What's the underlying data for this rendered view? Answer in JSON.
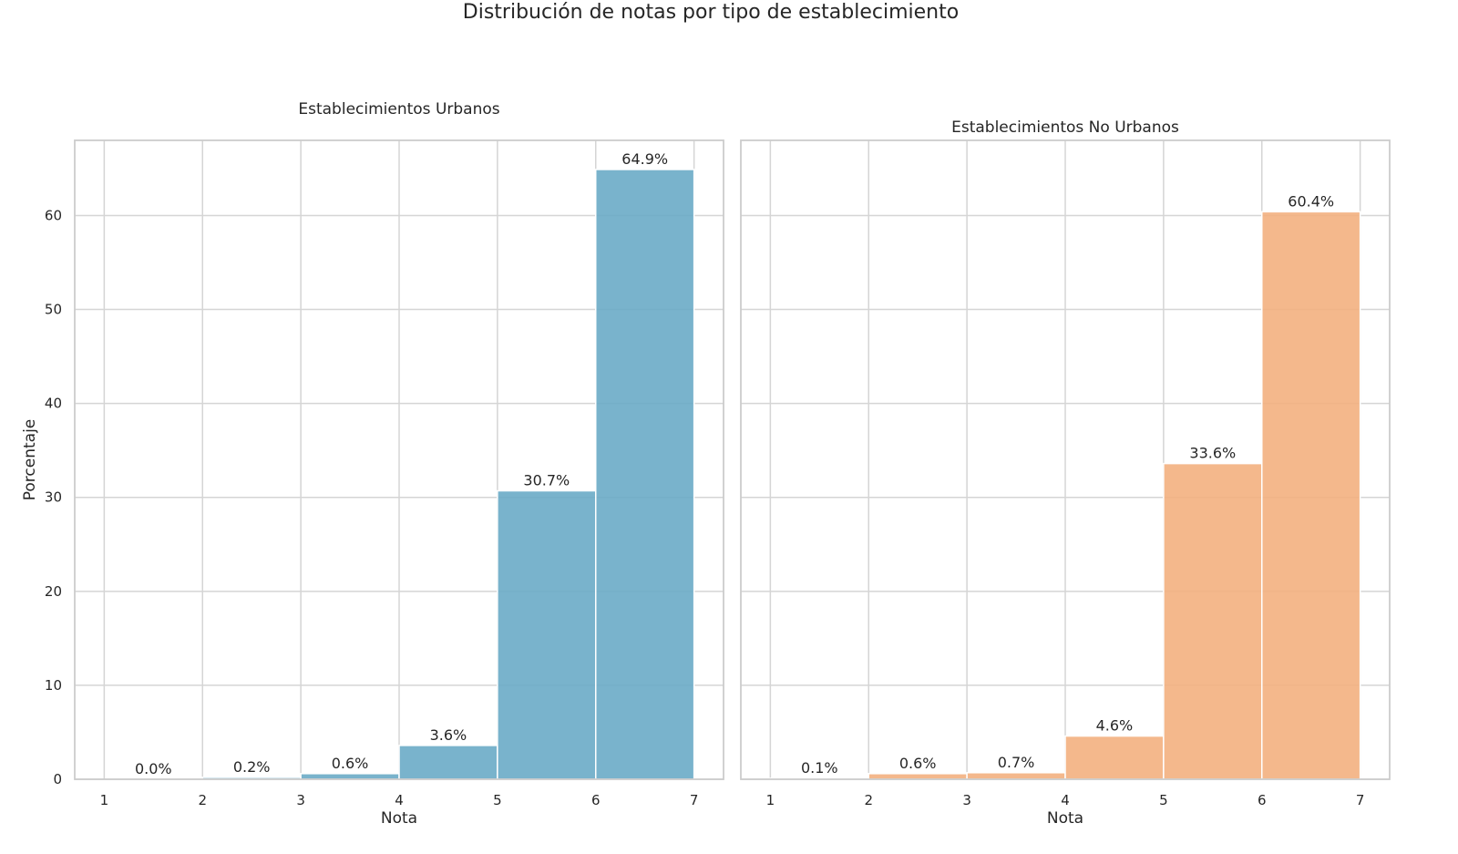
{
  "figure": {
    "suptitle": "Distribución de notas por tipo de establecimiento"
  },
  "chart_data": [
    {
      "type": "bar",
      "title": "Establecimientos Urbanos",
      "xlabel": "Nota",
      "ylabel": "Porcentaje",
      "x_bin_edges": [
        1,
        2,
        3,
        4,
        5,
        6,
        7
      ],
      "x_ticks": [
        "1",
        "2",
        "3",
        "4",
        "5",
        "6",
        "7"
      ],
      "y_ticks": [
        "0",
        "10",
        "20",
        "30",
        "40",
        "50",
        "60"
      ],
      "ylim": [
        0,
        68
      ],
      "xlim": [
        0.7,
        7.3
      ],
      "values": [
        0.0,
        0.2,
        0.6,
        3.6,
        30.7,
        64.9
      ],
      "data_labels": [
        "0.0%",
        "0.2%",
        "0.6%",
        "3.6%",
        "30.7%",
        "64.9%"
      ],
      "color": "#6aabc6",
      "grid": true
    },
    {
      "type": "bar",
      "title": "Establecimientos No Urbanos",
      "xlabel": "Nota",
      "ylabel": "",
      "x_bin_edges": [
        1,
        2,
        3,
        4,
        5,
        6,
        7
      ],
      "x_ticks": [
        "1",
        "2",
        "3",
        "4",
        "5",
        "6",
        "7"
      ],
      "y_ticks": [],
      "ylim": [
        0,
        68
      ],
      "xlim": [
        0.7,
        7.3
      ],
      "values": [
        0.1,
        0.6,
        0.7,
        4.6,
        33.6,
        60.4
      ],
      "data_labels": [
        "0.1%",
        "0.6%",
        "0.7%",
        "4.6%",
        "33.6%",
        "60.4%"
      ],
      "color": "#f3b07f",
      "grid": true
    }
  ]
}
